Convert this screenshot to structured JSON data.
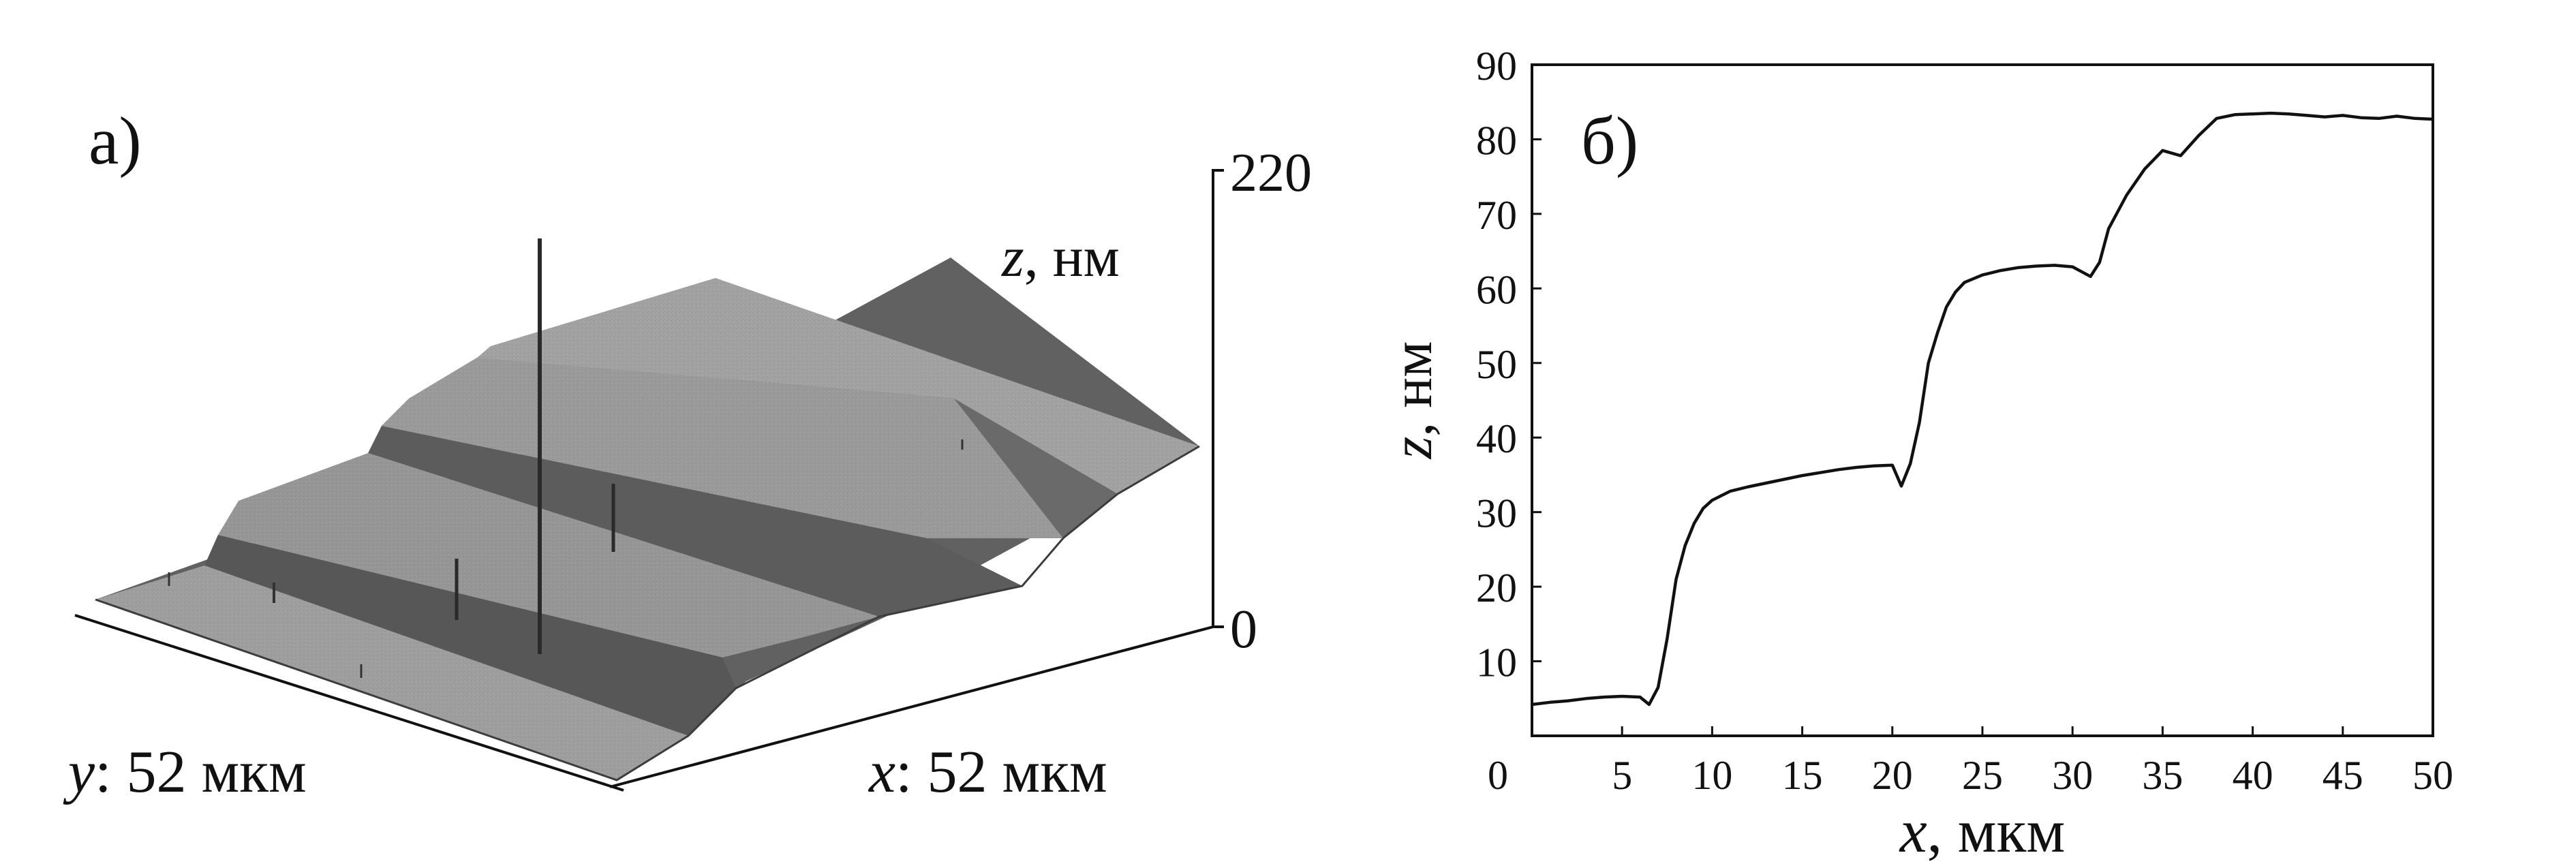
{
  "panel_a": {
    "label": "а)",
    "z_label_var": "z",
    "z_label_unit": ", нм",
    "z_top_tick": "220",
    "z_bottom_tick": "0",
    "y_axis_var": "y",
    "y_axis_text": ": 52 мкм",
    "x_axis_var": "x",
    "x_axis_text": ": 52 мкм"
  },
  "chart_data": {
    "type": "line",
    "panel_label": "б)",
    "xlabel_var": "x",
    "xlabel_unit": ", мкм",
    "ylabel_var": "z",
    "ylabel_unit": ", нм",
    "xlim": [
      0,
      50
    ],
    "ylim": [
      0,
      90
    ],
    "xticks": [
      0,
      5,
      10,
      15,
      20,
      25,
      30,
      35,
      40,
      45,
      50
    ],
    "yticks": [
      10,
      20,
      30,
      40,
      50,
      60,
      70,
      80,
      90
    ],
    "grid": false,
    "series": [
      {
        "x": [
          0,
          1,
          2,
          3,
          4,
          5,
          6,
          6.5,
          7,
          7.5,
          8,
          8.5,
          9,
          9.5,
          10,
          11,
          12,
          13,
          14,
          15,
          16,
          17,
          18,
          19,
          20,
          20.5,
          21,
          21.5,
          22,
          22.5,
          23,
          23.5,
          24,
          25,
          26,
          27,
          28,
          29,
          30,
          31,
          31.5,
          32,
          33,
          34,
          35,
          36,
          37,
          38,
          39,
          40,
          41,
          42,
          43,
          44,
          45,
          46,
          47,
          48,
          49,
          50
        ],
        "y": [
          4.2,
          4.5,
          4.7,
          5.0,
          5.2,
          5.3,
          5.2,
          4.2,
          6.5,
          13,
          21,
          25.5,
          28.5,
          30.5,
          31.6,
          32.8,
          33.4,
          33.9,
          34.4,
          34.9,
          35.3,
          35.7,
          36.0,
          36.2,
          36.3,
          33.5,
          36.5,
          42,
          50,
          54,
          57.5,
          59.5,
          60.8,
          61.8,
          62.4,
          62.8,
          63.0,
          63.1,
          62.9,
          61.6,
          63.5,
          68,
          72.5,
          76,
          78.5,
          77.8,
          80.5,
          82.8,
          83.3,
          83.4,
          83.5,
          83.4,
          83.2,
          83.0,
          83.2,
          82.9,
          82.8,
          83.1,
          82.8,
          82.7
        ]
      }
    ]
  }
}
